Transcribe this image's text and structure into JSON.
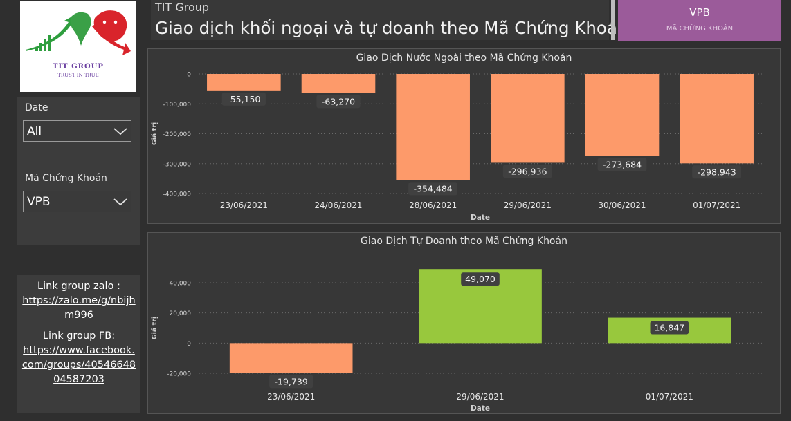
{
  "logo": {
    "brand": "TIT GROUP",
    "slogan": "TRUST IN TRUE"
  },
  "filters": {
    "date_label": "Date",
    "date_value": "All",
    "ticker_label": "Mã Chứng Khoán",
    "ticker_value": "VPB"
  },
  "links": {
    "zalo_label": "Link group zalo :",
    "zalo_url": "https://zalo.me/g/nbijhm996",
    "fb_label": "Link group FB:",
    "fb_url": "https://www.facebook.com/groups/4054664804587203"
  },
  "header": {
    "subtitle": "TIT Group",
    "title": "Giao dịch khối ngoại và tự doanh theo Mã Chứng Khoán"
  },
  "card": {
    "value": "VPB",
    "label": "MÃ CHỨNG KHOÁN"
  },
  "colors": {
    "negative": "#fd9a6a",
    "positive": "#98c83d"
  },
  "chart_data": [
    {
      "type": "bar",
      "title": "Giao Dịch Nước Ngoài theo Mã Chứng Khoán",
      "xlabel": "Date",
      "ylabel": "Giá trị",
      "categories": [
        "23/06/2021",
        "24/06/2021",
        "28/06/2021",
        "29/06/2021",
        "30/06/2021",
        "01/07/2021"
      ],
      "values": [
        -55150,
        -63270,
        -354484,
        -296936,
        -273684,
        -298943
      ],
      "value_labels": [
        "-55,150",
        "-63,270",
        "-354,484",
        "-296,936",
        "-273,684",
        "-298,943"
      ],
      "yticks": [
        0,
        -100000,
        -200000,
        -300000,
        -400000
      ],
      "ytick_labels": [
        "0",
        "-100,000",
        "-200,000",
        "-300,000",
        "-400,000"
      ],
      "ylim": [
        -400000,
        0
      ]
    },
    {
      "type": "bar",
      "title": "Giao Dịch Tự Doanh theo Mã Chứng Khoán",
      "xlabel": "Date",
      "ylabel": "Giá trị",
      "categories": [
        "23/06/2021",
        "29/06/2021",
        "01/07/2021"
      ],
      "values": [
        -19739,
        49070,
        16847
      ],
      "value_labels": [
        "-19,739",
        "49,070",
        "16,847"
      ],
      "yticks": [
        40000,
        20000,
        0,
        -20000
      ],
      "ytick_labels": [
        "40,000",
        "20,000",
        "0",
        "-20,000"
      ],
      "ylim": [
        -20000,
        40000
      ]
    }
  ]
}
